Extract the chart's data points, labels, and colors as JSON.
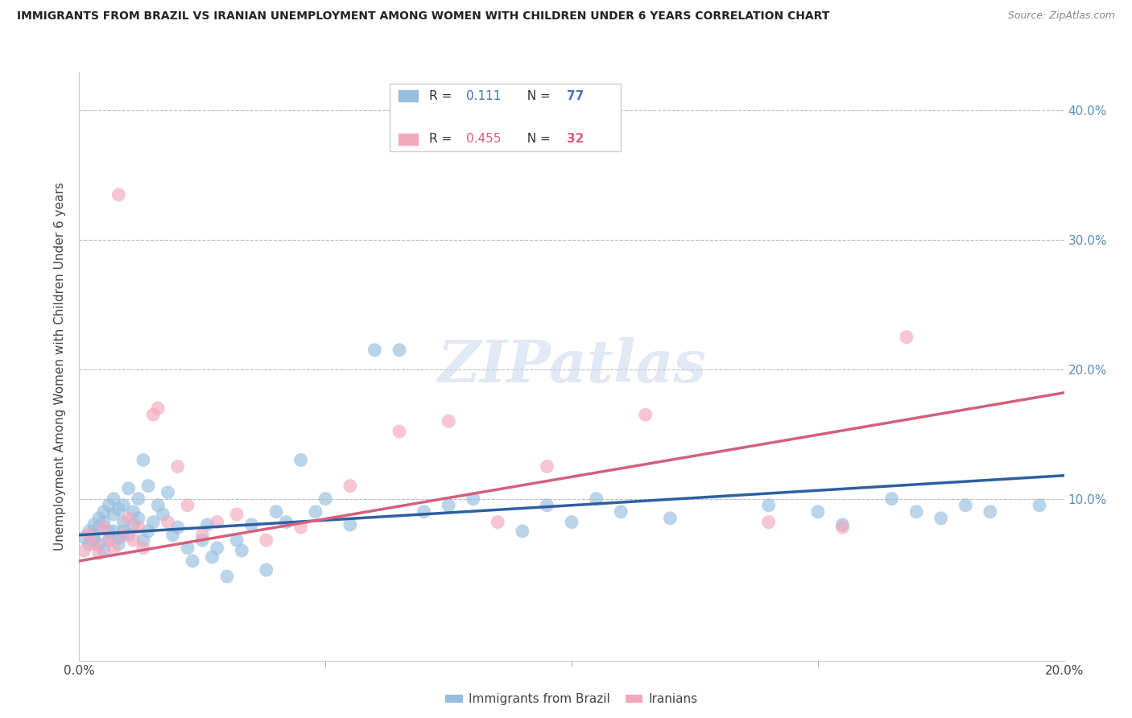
{
  "title": "IMMIGRANTS FROM BRAZIL VS IRANIAN UNEMPLOYMENT AMONG WOMEN WITH CHILDREN UNDER 6 YEARS CORRELATION CHART",
  "source": "Source: ZipAtlas.com",
  "ylabel": "Unemployment Among Women with Children Under 6 years",
  "x_range": [
    0.0,
    0.2
  ],
  "y_range": [
    -0.025,
    0.43
  ],
  "legend1_r": "0.111",
  "legend1_n": "77",
  "legend2_r": "0.455",
  "legend2_n": "32",
  "blue_color": "#95BEE0",
  "pink_color": "#F4A8BC",
  "blue_line_color": "#2E5FA3",
  "pink_line_color": "#D4607A",
  "brazil_x": [
    0.001,
    0.002,
    0.002,
    0.003,
    0.003,
    0.003,
    0.004,
    0.004,
    0.004,
    0.005,
    0.005,
    0.005,
    0.006,
    0.006,
    0.006,
    0.007,
    0.007,
    0.007,
    0.008,
    0.008,
    0.008,
    0.009,
    0.009,
    0.009,
    0.01,
    0.01,
    0.011,
    0.011,
    0.012,
    0.012,
    0.013,
    0.013,
    0.014,
    0.014,
    0.015,
    0.016,
    0.017,
    0.018,
    0.019,
    0.02,
    0.022,
    0.023,
    0.025,
    0.026,
    0.027,
    0.028,
    0.03,
    0.032,
    0.033,
    0.035,
    0.038,
    0.04,
    0.042,
    0.045,
    0.048,
    0.05,
    0.055,
    0.06,
    0.065,
    0.07,
    0.075,
    0.08,
    0.09,
    0.095,
    0.1,
    0.105,
    0.11,
    0.12,
    0.14,
    0.15,
    0.155,
    0.165,
    0.17,
    0.175,
    0.18,
    0.185,
    0.195
  ],
  "brazil_y": [
    0.07,
    0.075,
    0.065,
    0.08,
    0.072,
    0.068,
    0.085,
    0.078,
    0.065,
    0.09,
    0.06,
    0.082,
    0.075,
    0.095,
    0.068,
    0.088,
    0.075,
    0.1,
    0.07,
    0.092,
    0.065,
    0.082,
    0.075,
    0.095,
    0.072,
    0.108,
    0.08,
    0.09,
    0.085,
    0.1,
    0.068,
    0.13,
    0.075,
    0.11,
    0.082,
    0.095,
    0.088,
    0.105,
    0.072,
    0.078,
    0.062,
    0.052,
    0.068,
    0.08,
    0.055,
    0.062,
    0.04,
    0.068,
    0.06,
    0.08,
    0.045,
    0.09,
    0.082,
    0.13,
    0.09,
    0.1,
    0.08,
    0.215,
    0.215,
    0.09,
    0.095,
    0.1,
    0.075,
    0.095,
    0.082,
    0.1,
    0.09,
    0.085,
    0.095,
    0.09,
    0.08,
    0.1,
    0.09,
    0.085,
    0.095,
    0.09,
    0.095
  ],
  "iran_x": [
    0.001,
    0.002,
    0.003,
    0.004,
    0.005,
    0.006,
    0.007,
    0.008,
    0.009,
    0.01,
    0.011,
    0.012,
    0.013,
    0.015,
    0.016,
    0.018,
    0.02,
    0.022,
    0.025,
    0.028,
    0.032,
    0.038,
    0.045,
    0.055,
    0.065,
    0.075,
    0.085,
    0.095,
    0.115,
    0.14,
    0.155,
    0.168
  ],
  "iran_y": [
    0.06,
    0.072,
    0.065,
    0.058,
    0.078,
    0.068,
    0.062,
    0.335,
    0.072,
    0.085,
    0.068,
    0.078,
    0.062,
    0.165,
    0.17,
    0.082,
    0.125,
    0.095,
    0.072,
    0.082,
    0.088,
    0.068,
    0.078,
    0.11,
    0.152,
    0.16,
    0.082,
    0.125,
    0.165,
    0.082,
    0.078,
    0.225
  ],
  "blue_line_x0": 0.0,
  "blue_line_y0": 0.072,
  "blue_line_x1": 0.2,
  "blue_line_y1": 0.118,
  "pink_line_x0": 0.0,
  "pink_line_y0": 0.052,
  "pink_line_x1": 0.2,
  "pink_line_y1": 0.182
}
